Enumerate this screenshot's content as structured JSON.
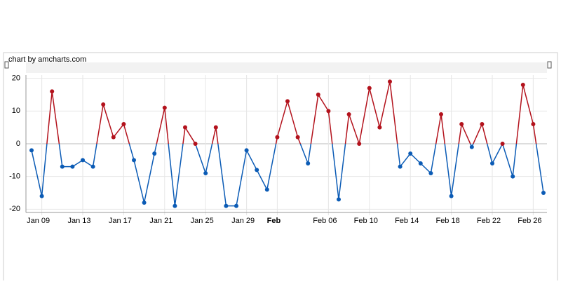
{
  "chart_data": {
    "type": "line",
    "credit": "chart by amcharts.com",
    "categories": [
      "Jan 08",
      "Jan 09",
      "Jan 10",
      "Jan 11",
      "Jan 12",
      "Jan 13",
      "Jan 14",
      "Jan 15",
      "Jan 16",
      "Jan 17",
      "Jan 18",
      "Jan 19",
      "Jan 20",
      "Jan 21",
      "Jan 22",
      "Jan 23",
      "Jan 24",
      "Jan 25",
      "Jan 26",
      "Jan 27",
      "Jan 28",
      "Jan 29",
      "Jan 30",
      "Jan 31",
      "Feb 01",
      "Feb 02",
      "Feb 03",
      "Feb 04",
      "Feb 05",
      "Feb 06",
      "Feb 07",
      "Feb 08",
      "Feb 09",
      "Feb 10",
      "Feb 11",
      "Feb 12",
      "Feb 13",
      "Feb 14",
      "Feb 15",
      "Feb 16",
      "Feb 17",
      "Feb 18",
      "Feb 19",
      "Feb 20",
      "Feb 21",
      "Feb 22",
      "Feb 23",
      "Feb 24",
      "Feb 25",
      "Feb 26",
      "Feb 27"
    ],
    "values": [
      -2,
      -16,
      16,
      -7,
      -7,
      -5,
      -7,
      12,
      2,
      6,
      -5,
      -18,
      -3,
      11,
      -19,
      5,
      0,
      -9,
      5,
      -19,
      -19,
      -2,
      -8,
      -14,
      2,
      13,
      2,
      -6,
      15,
      10,
      -17,
      9,
      0,
      17,
      5,
      19,
      -7,
      -3,
      -6,
      -9,
      9,
      -16,
      6,
      -1,
      6,
      -6,
      0,
      -10,
      18,
      6,
      -15
    ],
    "color_positive": "#b3121c",
    "color_negative": "#0b5bb5",
    "xticks": [
      "Jan 09",
      "Jan 13",
      "Jan 17",
      "Jan 21",
      "Jan 25",
      "Jan 29",
      {
        "value": "Feb 01",
        "label": "Feb"
      },
      "Feb 06",
      "Feb 10",
      "Feb 14",
      "Feb 18",
      "Feb 22",
      "Feb 26"
    ],
    "ylim": [
      -21,
      21
    ],
    "yticks": [
      20,
      10,
      0,
      -10,
      -20
    ],
    "grid": true
  }
}
